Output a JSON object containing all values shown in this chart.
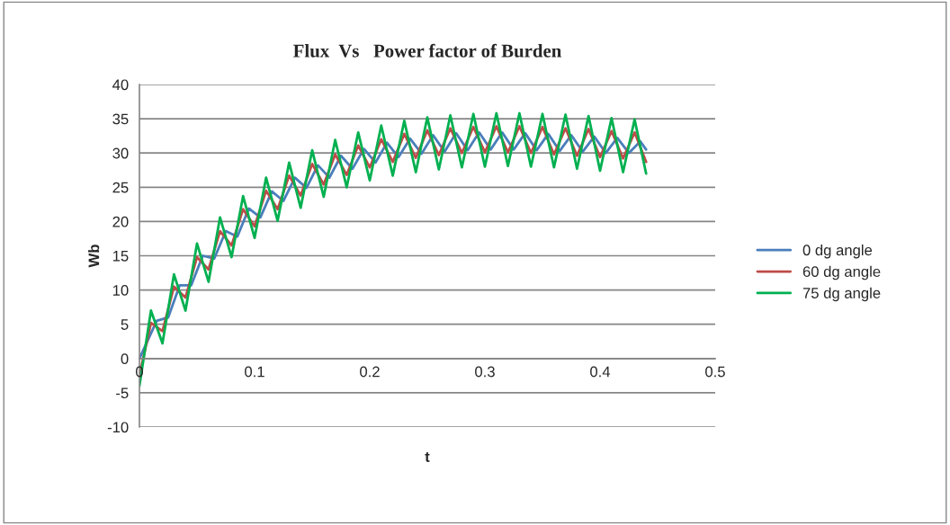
{
  "chart_data": {
    "type": "line",
    "title": "Flux  Vs   Power factor of Burden",
    "xlabel": "t",
    "ylabel": "Wb",
    "xlim": [
      0,
      0.5
    ],
    "xticks": [
      0,
      0.1,
      0.2,
      0.3,
      0.4,
      0.5
    ],
    "ylim": [
      -10,
      40
    ],
    "yticks": [
      -10,
      -5,
      0,
      5,
      10,
      15,
      20,
      25,
      30,
      35,
      40
    ],
    "grid": "y",
    "legend": "right",
    "marker": "none",
    "line_style": "solid",
    "series": [
      {
        "name": "0 dg angle",
        "color": "#4a7ebb",
        "x": [
          0,
          0.015,
          0.025,
          0.035,
          0.045,
          0.055,
          0.065,
          0.075,
          0.085,
          0.095,
          0.105,
          0.115,
          0.125,
          0.135,
          0.145,
          0.155,
          0.165,
          0.175,
          0.185,
          0.195,
          0.205,
          0.215,
          0.225,
          0.235,
          0.245,
          0.255,
          0.265,
          0.275,
          0.285,
          0.295,
          0.305,
          0.315,
          0.325,
          0.335,
          0.345,
          0.355,
          0.365,
          0.375,
          0.385,
          0.395,
          0.405,
          0.415,
          0.425,
          0.435,
          0.44
        ],
        "values": [
          0,
          5.5,
          6,
          10.7,
          10.7,
          15,
          14.6,
          18.6,
          17.8,
          21.9,
          20.6,
          24.4,
          23,
          26.4,
          24.9,
          28.2,
          26.4,
          29.6,
          27.7,
          30.6,
          28.6,
          31.5,
          29.4,
          32.1,
          29.9,
          32.6,
          30.2,
          32.9,
          30.4,
          33,
          30.5,
          33,
          30.5,
          32.9,
          30.4,
          32.8,
          30.3,
          32.6,
          30.2,
          32.4,
          30,
          32.2,
          30,
          31.7,
          30.5
        ]
      },
      {
        "name": "60 dg angle",
        "color": "#be4b48",
        "x": [
          0,
          0.01,
          0.02,
          0.03,
          0.04,
          0.05,
          0.06,
          0.07,
          0.08,
          0.09,
          0.1,
          0.11,
          0.12,
          0.13,
          0.14,
          0.15,
          0.16,
          0.17,
          0.18,
          0.19,
          0.2,
          0.21,
          0.22,
          0.23,
          0.24,
          0.25,
          0.26,
          0.27,
          0.28,
          0.29,
          0.3,
          0.31,
          0.32,
          0.33,
          0.34,
          0.35,
          0.36,
          0.37,
          0.38,
          0.39,
          0.4,
          0.41,
          0.42,
          0.43,
          0.44
        ],
        "values": [
          -2.5,
          5.2,
          4,
          10.5,
          8.9,
          14.8,
          13,
          18.6,
          16.5,
          21.8,
          19.3,
          24.5,
          21.8,
          26.7,
          23.8,
          28.4,
          25.4,
          29.8,
          26.8,
          31.1,
          27.9,
          32,
          28.7,
          32.8,
          29.3,
          33.3,
          29.7,
          33.6,
          30,
          33.8,
          30.1,
          33.9,
          30.1,
          33.9,
          30,
          33.8,
          29.8,
          33.6,
          29.6,
          33.5,
          29.4,
          33.2,
          29.2,
          33,
          28.7
        ]
      },
      {
        "name": "75 dg angle",
        "color": "#00b050",
        "x": [
          0,
          0.01,
          0.02,
          0.03,
          0.04,
          0.05,
          0.06,
          0.07,
          0.08,
          0.09,
          0.1,
          0.11,
          0.12,
          0.13,
          0.14,
          0.15,
          0.16,
          0.17,
          0.18,
          0.19,
          0.2,
          0.21,
          0.22,
          0.23,
          0.24,
          0.25,
          0.26,
          0.27,
          0.28,
          0.29,
          0.3,
          0.31,
          0.32,
          0.33,
          0.34,
          0.35,
          0.36,
          0.37,
          0.38,
          0.39,
          0.4,
          0.41,
          0.42,
          0.43,
          0.44
        ],
        "values": [
          -4,
          7,
          2.2,
          12.3,
          7,
          16.8,
          11.2,
          20.6,
          14.8,
          23.7,
          17.6,
          26.4,
          20.1,
          28.6,
          22,
          30.4,
          23.6,
          31.9,
          25,
          33,
          26,
          34,
          26.7,
          34.7,
          27.2,
          35.2,
          27.6,
          35.5,
          27.9,
          35.7,
          28,
          35.8,
          28.1,
          35.8,
          28,
          35.7,
          27.9,
          35.6,
          27.7,
          35.4,
          27.4,
          35.1,
          27.2,
          34.9,
          27
        ]
      }
    ]
  }
}
